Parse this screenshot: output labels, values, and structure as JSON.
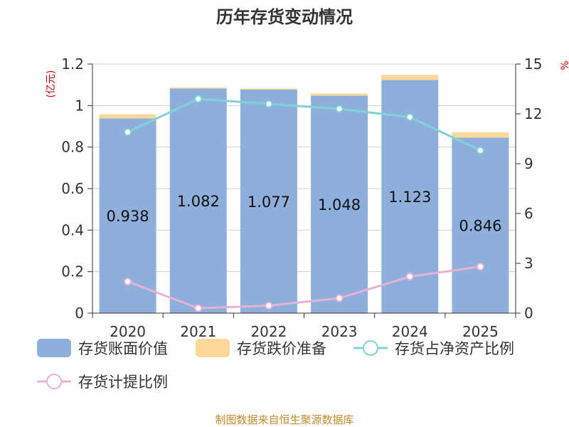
{
  "chart_data": {
    "type": "bar",
    "title": "历年存货变动情况",
    "categories": [
      "2020",
      "2021",
      "2022",
      "2023",
      "2024",
      "2025"
    ],
    "series": [
      {
        "name": "存货账面价值",
        "kind": "bar",
        "axis": "left",
        "color": "#8eaedb",
        "values": [
          0.938,
          1.082,
          1.077,
          1.048,
          1.123,
          0.846
        ]
      },
      {
        "name": "存货跌价准备",
        "kind": "bar-stack",
        "axis": "left",
        "color": "#fcd899",
        "values": [
          0.02,
          0.005,
          0.005,
          0.01,
          0.025,
          0.025
        ]
      },
      {
        "name": "存货占净资产比例",
        "kind": "line",
        "axis": "right",
        "color": "#7fd3d6",
        "values": [
          10.9,
          12.9,
          12.6,
          12.3,
          11.8,
          9.8
        ]
      },
      {
        "name": "存货计提比例",
        "kind": "line",
        "axis": "right",
        "color": "#e8b2d6",
        "values": [
          1.9,
          0.3,
          0.45,
          0.9,
          2.2,
          2.8
        ]
      }
    ],
    "left_axis": {
      "unit": "(亿元)",
      "ylim": [
        0,
        1.2
      ],
      "ticks": [
        "0",
        "0.2",
        "0.4",
        "0.6",
        "0.8",
        "1",
        "1.2"
      ]
    },
    "right_axis": {
      "unit": "%",
      "ylim": [
        0,
        15
      ],
      "ticks": [
        "0",
        "3",
        "6",
        "9",
        "12",
        "15"
      ]
    },
    "grid": true,
    "legend_position": "bottom"
  },
  "source": "制图数据来自恒生聚源数据库"
}
